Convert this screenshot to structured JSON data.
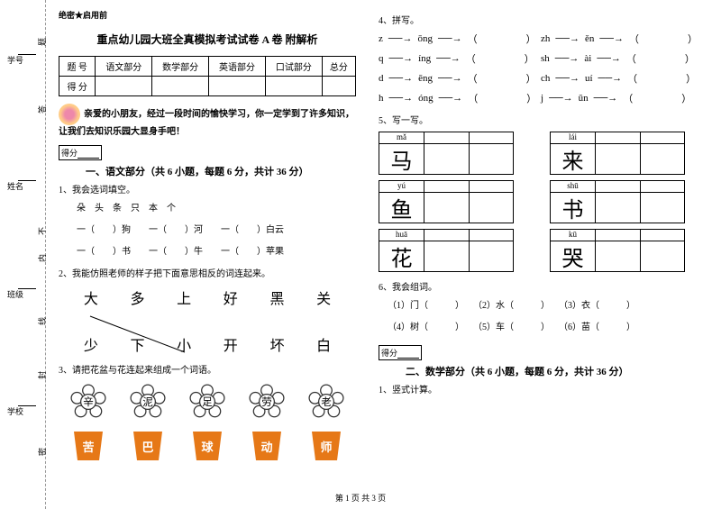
{
  "secret": "绝密★启用前",
  "title": "重点幼儿园大班全真模拟考试试卷 A 卷 附解析",
  "score_table": {
    "headers": [
      "题 号",
      "语文部分",
      "数学部分",
      "英语部分",
      "口试部分",
      "总分"
    ],
    "row2": "得 分"
  },
  "binding": {
    "l1": "学号",
    "l2": "题",
    "l3": "姓名",
    "l4": "答",
    "l5": "班级",
    "l6": "不",
    "l7": "内",
    "l8": "学校",
    "l9": "线",
    "l10": "封",
    "l11": "密"
  },
  "intro": "亲爱的小朋友，经过一段时间的愉快学习，你一定学到了许多知识，让我们去知识乐园大显身手吧！",
  "score_label": "得分",
  "section1": "一、语文部分（共 6 小题，每题 6 分，共计 36 分）",
  "q1": "1、我会选词填空。",
  "q1_words": [
    "朵",
    "头",
    "条",
    "只",
    "本",
    "个"
  ],
  "q1_lines": [
    "一（　　）狗　　一（　　）河　　一（　　）白云",
    "一（　　）书　　一（　　）牛　　一（　　）苹果"
  ],
  "q2": "2、我能仿照老师的样子把下面意思相反的词连起来。",
  "q2_row1": [
    "大",
    "多",
    "上",
    "好",
    "黑",
    "关"
  ],
  "q2_row2": [
    "少",
    "下",
    "小",
    "开",
    "坏",
    "白"
  ],
  "q3": "3、请把花盆与花连起来组成一个词语。",
  "flowers": [
    "辛",
    "泥",
    "足",
    "劳",
    "老"
  ],
  "pots": [
    "苦",
    "巴",
    "球",
    "动",
    "师"
  ],
  "q4": "4、拼写。",
  "pinyin": [
    [
      [
        "z",
        "ōng"
      ],
      [
        "zh",
        "ěn"
      ]
    ],
    [
      [
        "q",
        "íng"
      ],
      [
        "sh",
        "ài"
      ]
    ],
    [
      [
        "d",
        "ēng"
      ],
      [
        "ch",
        "uí"
      ]
    ],
    [
      [
        "h",
        "óng"
      ],
      [
        "j",
        "ūn"
      ]
    ]
  ],
  "q5": "5、写一写。",
  "grids": [
    [
      {
        "py": "mǎ",
        "char": "马"
      },
      {
        "py": "lái",
        "char": "来"
      }
    ],
    [
      {
        "py": "yú",
        "char": "鱼"
      },
      {
        "py": "shū",
        "char": "书"
      }
    ],
    [
      {
        "py": "huā",
        "char": "花"
      },
      {
        "py": "kū",
        "char": "哭"
      }
    ]
  ],
  "q6": "6、我会组词。",
  "q6_items": [
    "（1）门（　　　）　　（2）水（　　　）　　（3）衣（　　　）",
    "（4）树（　　　）　　（5）车（　　　）　　（6）苗（　　　）"
  ],
  "section2": "二、数学部分（共 6 小题，每题 6 分，共计 36 分）",
  "math_q1": "1、竖式计算。",
  "footer": "第 1 页 共 3 页",
  "colors": {
    "pot": "#e67817",
    "connect": "#000000"
  }
}
